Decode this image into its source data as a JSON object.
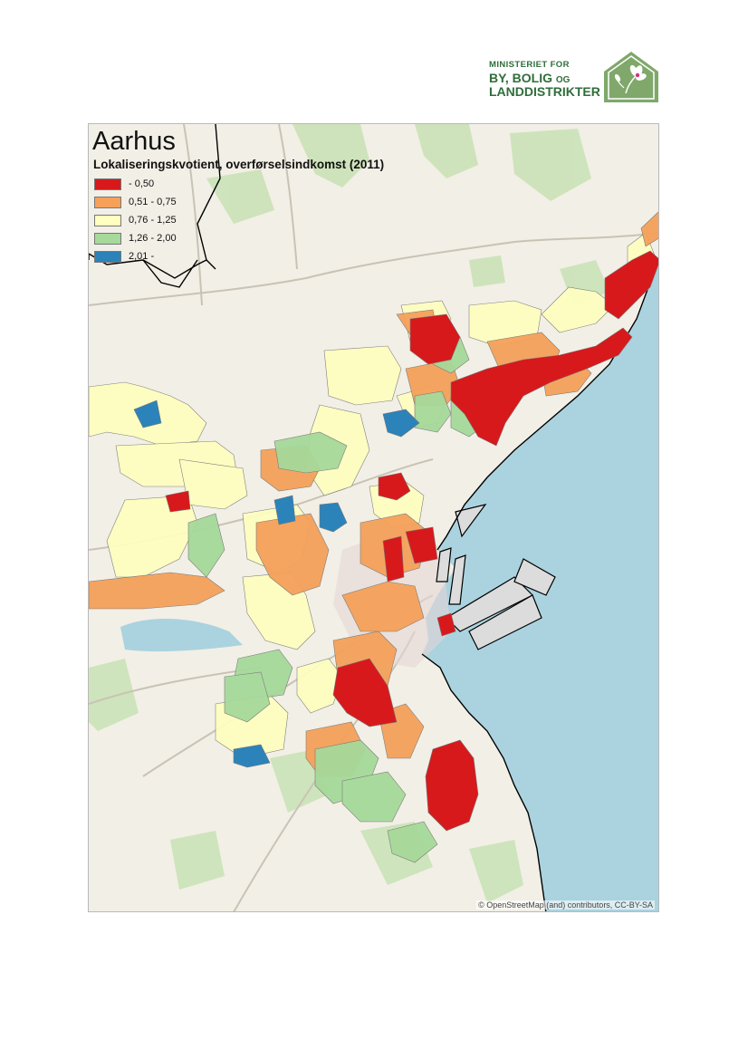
{
  "logo": {
    "line1": "MINISTERIET FOR",
    "line2_main": "BY, BOLIG",
    "line2_small": "OG",
    "line3": "LANDDISTRIKTER",
    "colors": {
      "text": "#2f6d3a",
      "house": "#7fa86a"
    }
  },
  "map": {
    "title": "Aarhus",
    "subtitle": "Lokaliseringskvotient, overførselsindkomst (2011)",
    "legend": [
      {
        "label": " - 0,50",
        "color": "#d7191c"
      },
      {
        "label": "0,51 - 0,75",
        "color": "#f5a15a"
      },
      {
        "label": "0,76 - 1,25",
        "color": "#ffffc0"
      },
      {
        "label": "1,26 - 2,00",
        "color": "#a6d99a"
      },
      {
        "label": "2,01 -",
        "color": "#2b83ba"
      }
    ],
    "attribution": "© OpenStreetMap (and) contributors, CC-BY-SA",
    "colors": {
      "sea": "#aad3df",
      "land": "#f2efe6",
      "forest": "#c8e2b4",
      "boundary": "#000000"
    }
  }
}
